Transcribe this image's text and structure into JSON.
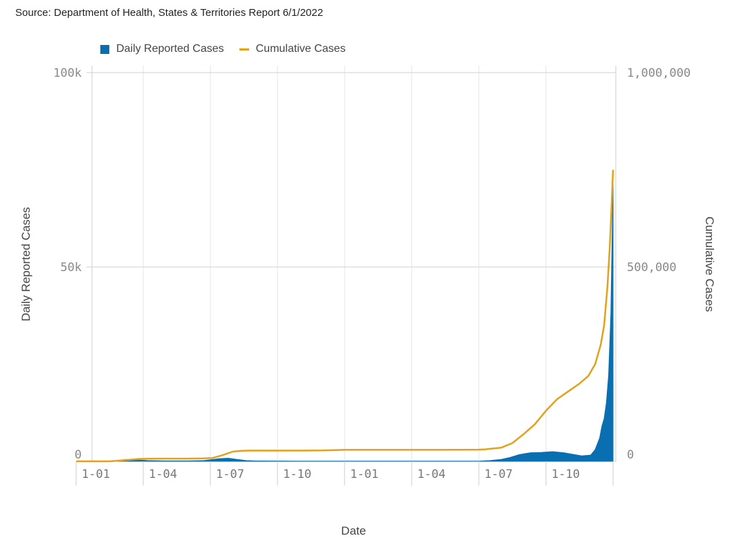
{
  "source_text": "Source: Department of Health, States & Territories Report 6/1/2022",
  "chart_data": {
    "type": "bar+line",
    "xlabel": "Date",
    "ylabel_left": "Daily Reported Cases",
    "ylabel_right": "Cumulative Cases",
    "legend": [
      {
        "name": "Daily Reported Cases",
        "color": "#0a6fb0",
        "kind": "bar"
      },
      {
        "name": "Cumulative Cases",
        "color": "#e1a21a",
        "kind": "line"
      }
    ],
    "legend_placement": "top-left",
    "y_left": {
      "ticks": [
        0,
        50000,
        100000
      ],
      "tick_labels": [
        "0",
        "50k",
        "100k"
      ],
      "range": [
        0,
        100000
      ]
    },
    "y_right": {
      "ticks": [
        0,
        500000,
        1000000
      ],
      "tick_labels": [
        "0",
        "500,000",
        "1,000,000"
      ],
      "range": [
        0,
        1000000
      ]
    },
    "x_ticks": [
      "1-01",
      "1-04",
      "1-07",
      "1-10",
      "1-01",
      "1-04",
      "1-07",
      "1-10"
    ],
    "grid": true,
    "x_range_months": [
      0,
      24
    ],
    "cumulative_cases": [
      [
        0,
        0
      ],
      [
        1.5,
        0
      ],
      [
        2.2,
        3000
      ],
      [
        2.8,
        6000
      ],
      [
        3.2,
        6500
      ],
      [
        3.6,
        7000
      ],
      [
        4.0,
        7000
      ],
      [
        5.0,
        7000
      ],
      [
        5.7,
        7500
      ],
      [
        6.1,
        8500
      ],
      [
        6.5,
        15000
      ],
      [
        7.0,
        25000
      ],
      [
        7.4,
        27000
      ],
      [
        7.8,
        27500
      ],
      [
        9.0,
        27500
      ],
      [
        10.0,
        27500
      ],
      [
        11.0,
        28000
      ],
      [
        11.6,
        29000
      ],
      [
        12.0,
        29500
      ],
      [
        14.0,
        29500
      ],
      [
        16.0,
        29500
      ],
      [
        18.0,
        30000
      ],
      [
        18.3,
        31000
      ],
      [
        19.0,
        35000
      ],
      [
        19.5,
        47000
      ],
      [
        20.0,
        70000
      ],
      [
        20.5,
        95000
      ],
      [
        21.0,
        130000
      ],
      [
        21.5,
        160000
      ],
      [
        22.0,
        180000
      ],
      [
        22.5,
        200000
      ],
      [
        22.9,
        220000
      ],
      [
        23.2,
        250000
      ],
      [
        23.45,
        300000
      ],
      [
        23.6,
        350000
      ],
      [
        23.75,
        450000
      ],
      [
        23.85,
        550000
      ],
      [
        23.93,
        650000
      ],
      [
        24.0,
        750000
      ]
    ],
    "daily_cases": [
      [
        0,
        0
      ],
      [
        1.5,
        0
      ],
      [
        2.0,
        200
      ],
      [
        2.2,
        500
      ],
      [
        2.5,
        400
      ],
      [
        2.9,
        300
      ],
      [
        3.2,
        200
      ],
      [
        4.0,
        100
      ],
      [
        5.0,
        100
      ],
      [
        5.7,
        200
      ],
      [
        6.0,
        400
      ],
      [
        6.4,
        700
      ],
      [
        6.8,
        800
      ],
      [
        7.2,
        500
      ],
      [
        7.6,
        200
      ],
      [
        8.0,
        100
      ],
      [
        10.0,
        50
      ],
      [
        12.0,
        50
      ],
      [
        18.0,
        50
      ],
      [
        18.5,
        200
      ],
      [
        19.0,
        500
      ],
      [
        19.4,
        1000
      ],
      [
        19.8,
        1700
      ],
      [
        20.3,
        2200
      ],
      [
        20.8,
        2300
      ],
      [
        21.3,
        2500
      ],
      [
        21.8,
        2200
      ],
      [
        22.2,
        1800
      ],
      [
        22.6,
        1400
      ],
      [
        23.0,
        1600
      ],
      [
        23.2,
        3000
      ],
      [
        23.4,
        6000
      ],
      [
        23.5,
        9000
      ],
      [
        23.6,
        11000
      ],
      [
        23.7,
        15000
      ],
      [
        23.8,
        22000
      ],
      [
        23.85,
        30000
      ],
      [
        23.9,
        38000
      ],
      [
        23.95,
        55000
      ],
      [
        24.0,
        73000
      ]
    ]
  }
}
